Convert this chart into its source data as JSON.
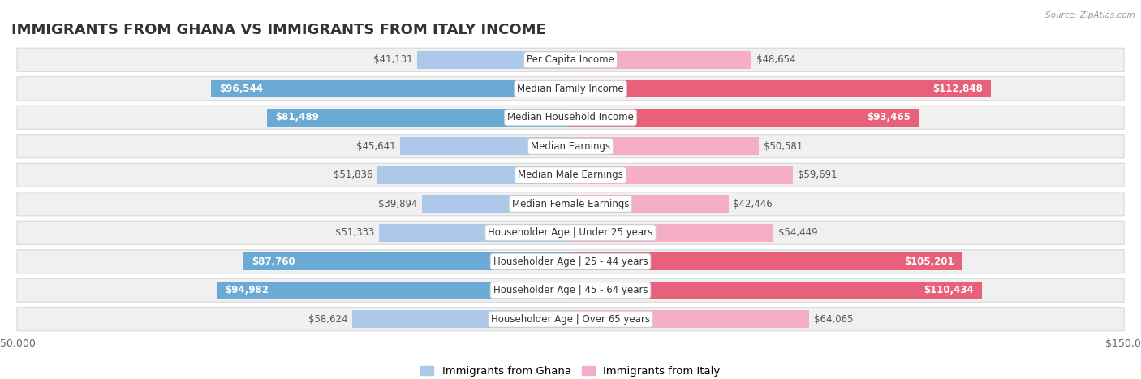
{
  "title": "IMMIGRANTS FROM GHANA VS IMMIGRANTS FROM ITALY INCOME",
  "source": "Source: ZipAtlas.com",
  "categories": [
    "Per Capita Income",
    "Median Family Income",
    "Median Household Income",
    "Median Earnings",
    "Median Male Earnings",
    "Median Female Earnings",
    "Householder Age | Under 25 years",
    "Householder Age | 25 - 44 years",
    "Householder Age | 45 - 64 years",
    "Householder Age | Over 65 years"
  ],
  "ghana_values": [
    41131,
    96544,
    81489,
    45641,
    51836,
    39894,
    51333,
    87760,
    94982,
    58624
  ],
  "italy_values": [
    48654,
    112848,
    93465,
    50581,
    59691,
    42446,
    54449,
    105201,
    110434,
    64065
  ],
  "ghana_labels": [
    "$41,131",
    "$96,544",
    "$81,489",
    "$45,641",
    "$51,836",
    "$39,894",
    "$51,333",
    "$87,760",
    "$94,982",
    "$58,624"
  ],
  "italy_labels": [
    "$48,654",
    "$112,848",
    "$93,465",
    "$50,581",
    "$59,691",
    "$42,446",
    "$54,449",
    "$105,201",
    "$110,434",
    "$64,065"
  ],
  "ghana_color_light": "#adc8e8",
  "ghana_color_dark": "#6aaad4",
  "italy_color_light": "#f5aec8",
  "italy_color_dark": "#e8607a",
  "max_value": 150000,
  "bar_height": 0.62,
  "inside_threshold": 70000,
  "title_fontsize": 13,
  "label_fontsize": 8.5,
  "category_fontsize": 8.5,
  "legend_fontsize": 9.5,
  "label_color_outside": "#555555",
  "label_color_inside": "#ffffff",
  "row_bg": "#f0f0f0",
  "row_border": "#d8d8d8"
}
